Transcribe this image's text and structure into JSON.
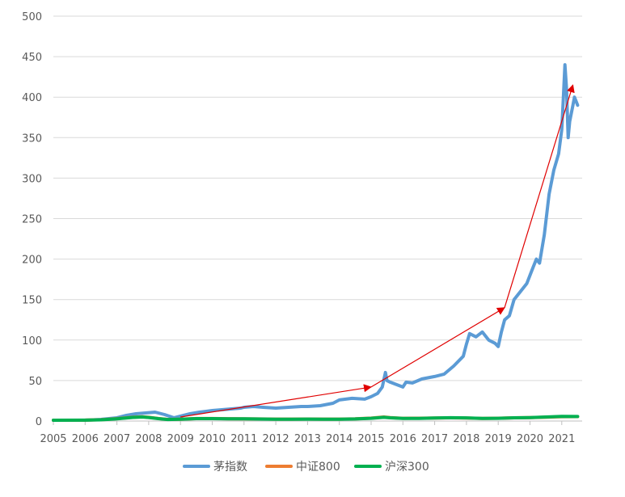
{
  "chart_data": {
    "type": "line",
    "title": "",
    "xlabel": "",
    "ylabel": "",
    "xlim": [
      2005,
      2021.55
    ],
    "ylim": [
      0,
      500
    ],
    "x_ticks": [
      "2005",
      "2006",
      "2007",
      "2008",
      "2009",
      "2010",
      "2011",
      "2012",
      "2013",
      "2014",
      "2015",
      "2016",
      "2017",
      "2018",
      "2019",
      "2020",
      "2021"
    ],
    "y_ticks": [
      "0",
      "50",
      "100",
      "150",
      "200",
      "250",
      "300",
      "350",
      "400",
      "450",
      "500"
    ],
    "grid": "horizontal",
    "legend_position": "bottom",
    "series": [
      {
        "name": "茅指数",
        "color": "#5b9bd5",
        "x": [
          2005.0,
          2006.0,
          2006.5,
          2007.0,
          2007.3,
          2007.6,
          2007.9,
          2008.2,
          2008.5,
          2008.8,
          2009.0,
          2009.3,
          2009.6,
          2010.0,
          2010.3,
          2010.6,
          2010.9,
          2011.0,
          2011.3,
          2011.6,
          2012.0,
          2012.4,
          2012.8,
          2013.0,
          2013.4,
          2013.8,
          2014.0,
          2014.4,
          2014.8,
          2015.0,
          2015.2,
          2015.35,
          2015.45,
          2015.5,
          2015.6,
          2015.8,
          2016.0,
          2016.1,
          2016.3,
          2016.6,
          2017.0,
          2017.3,
          2017.6,
          2017.9,
          2018.0,
          2018.1,
          2018.3,
          2018.5,
          2018.7,
          2018.9,
          2019.0,
          2019.1,
          2019.2,
          2019.35,
          2019.5,
          2019.7,
          2019.9,
          2020.0,
          2020.1,
          2020.2,
          2020.3,
          2020.45,
          2020.6,
          2020.75,
          2020.9,
          2021.0,
          2021.05,
          2021.1,
          2021.15,
          2021.2,
          2021.25,
          2021.3,
          2021.35,
          2021.4,
          2021.45,
          2021.5
        ],
        "values": [
          1,
          1,
          2,
          4,
          7,
          9,
          10,
          11,
          8,
          4,
          6,
          9,
          11,
          13,
          14,
          15,
          16,
          17,
          18,
          17,
          16,
          17,
          18,
          18,
          19,
          22,
          26,
          28,
          27,
          30,
          34,
          42,
          60,
          50,
          48,
          45,
          42,
          48,
          47,
          52,
          55,
          58,
          68,
          80,
          95,
          108,
          104,
          110,
          100,
          96,
          92,
          110,
          125,
          130,
          150,
          160,
          170,
          180,
          190,
          200,
          195,
          230,
          280,
          310,
          330,
          360,
          400,
          440,
          410,
          350,
          370,
          380,
          390,
          400,
          395,
          390
        ]
      },
      {
        "name": "中证800",
        "color": "#ed7d31",
        "x": [
          2005.0,
          2006.0,
          2006.5,
          2007.0,
          2007.5,
          2007.8,
          2008.0,
          2008.3,
          2008.6,
          2009.0,
          2009.5,
          2010.0,
          2010.5,
          2011.0,
          2011.5,
          2012.0,
          2012.5,
          2013.0,
          2013.5,
          2014.0,
          2014.5,
          2015.0,
          2015.4,
          2015.6,
          2016.0,
          2016.5,
          2017.0,
          2017.5,
          2018.0,
          2018.5,
          2019.0,
          2019.5,
          2020.0,
          2020.5,
          2021.0,
          2021.5
        ],
        "values": [
          1.0,
          1.1,
          1.6,
          3.0,
          4.8,
          5.2,
          4.6,
          3.2,
          2.0,
          2.3,
          3.1,
          3.1,
          2.9,
          2.8,
          2.6,
          2.4,
          2.4,
          2.5,
          2.4,
          2.4,
          2.7,
          3.6,
          5.0,
          4.2,
          3.4,
          3.5,
          3.8,
          4.0,
          3.8,
          3.3,
          3.5,
          4.0,
          4.2,
          4.8,
          5.4,
          5.5
        ]
      },
      {
        "name": "沪深300",
        "color": "#00b050",
        "x": [
          2005.0,
          2006.0,
          2006.5,
          2007.0,
          2007.5,
          2007.8,
          2008.0,
          2008.3,
          2008.6,
          2009.0,
          2009.5,
          2010.0,
          2010.5,
          2011.0,
          2011.5,
          2012.0,
          2012.5,
          2013.0,
          2013.5,
          2014.0,
          2014.5,
          2015.0,
          2015.4,
          2015.6,
          2016.0,
          2016.5,
          2017.0,
          2017.5,
          2018.0,
          2018.5,
          2019.0,
          2019.5,
          2020.0,
          2020.5,
          2021.0,
          2021.5
        ],
        "values": [
          1.0,
          1.1,
          1.5,
          2.8,
          4.5,
          5.0,
          4.4,
          3.0,
          1.9,
          2.2,
          3.0,
          3.0,
          2.8,
          2.7,
          2.5,
          2.3,
          2.3,
          2.4,
          2.3,
          2.3,
          2.6,
          3.4,
          4.6,
          4.0,
          3.2,
          3.3,
          3.8,
          4.1,
          3.9,
          3.2,
          3.4,
          4.0,
          4.3,
          5.0,
          5.8,
          5.6
        ]
      }
    ],
    "annotations": [
      {
        "type": "arrow",
        "color": "#e00000",
        "from": [
          2009.0,
          5
        ],
        "to": [
          2015.0,
          42
        ]
      },
      {
        "type": "arrow",
        "color": "#e00000",
        "from": [
          2015.0,
          42
        ],
        "to": [
          2019.2,
          140
        ]
      },
      {
        "type": "arrow",
        "color": "#e00000",
        "from": [
          2019.2,
          140
        ],
        "to": [
          2021.35,
          415
        ]
      }
    ]
  }
}
